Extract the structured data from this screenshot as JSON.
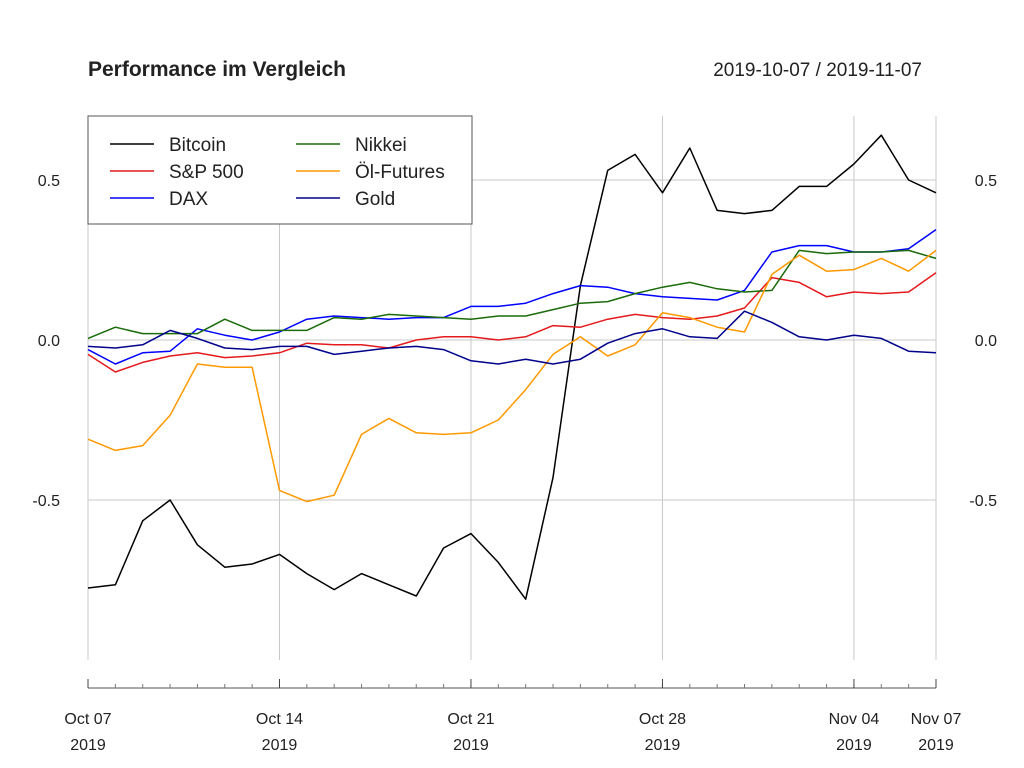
{
  "chart_data": {
    "type": "line",
    "title": "Performance im Vergleich",
    "date_range": "2019-10-07 / 2019-11-07",
    "xlabel": "",
    "ylabel": "",
    "ylim": [
      -1.0,
      0.7
    ],
    "y_ticks": [
      0.5,
      0.0,
      -0.5
    ],
    "y_tick_labels": [
      "0.5",
      "0.0",
      "-0.5"
    ],
    "x_range": [
      "2019-10-07",
      "2019-11-07"
    ],
    "x_ticks": [
      {
        "date": "2019-10-07",
        "line1": "Oct 07",
        "line2": "2019"
      },
      {
        "date": "2019-10-14",
        "line1": "Oct 14",
        "line2": "2019"
      },
      {
        "date": "2019-10-21",
        "line1": "Oct 21",
        "line2": "2019"
      },
      {
        "date": "2019-10-28",
        "line1": "Oct 28",
        "line2": "2019"
      },
      {
        "date": "2019-11-04",
        "line1": "Nov 04",
        "line2": "2019"
      },
      {
        "date": "2019-11-07",
        "line1": "Nov 07",
        "line2": "2019"
      }
    ],
    "grid": true,
    "legend_position": "top-left",
    "x": [
      "2019-10-07",
      "2019-10-08",
      "2019-10-09",
      "2019-10-10",
      "2019-10-11",
      "2019-10-12",
      "2019-10-13",
      "2019-10-14",
      "2019-10-15",
      "2019-10-16",
      "2019-10-17",
      "2019-10-18",
      "2019-10-19",
      "2019-10-20",
      "2019-10-21",
      "2019-10-22",
      "2019-10-23",
      "2019-10-24",
      "2019-10-25",
      "2019-10-26",
      "2019-10-27",
      "2019-10-28",
      "2019-10-29",
      "2019-10-30",
      "2019-10-31",
      "2019-11-01",
      "2019-11-02",
      "2019-11-03",
      "2019-11-04",
      "2019-11-05",
      "2019-11-06",
      "2019-11-07"
    ],
    "series": [
      {
        "name": "Bitcoin",
        "color": "#000000",
        "values": [
          -0.775,
          -0.765,
          -0.565,
          -0.5,
          -0.64,
          -0.71,
          -0.7,
          -0.67,
          -0.73,
          -0.78,
          -0.73,
          -0.765,
          -0.8,
          -0.65,
          -0.605,
          -0.695,
          -0.81,
          -0.43,
          0.17,
          0.53,
          0.58,
          0.46,
          0.6,
          0.405,
          0.395,
          0.405,
          0.48,
          0.48,
          0.55,
          0.64,
          0.5,
          0.46
        ]
      },
      {
        "name": "S&P 500",
        "color": "#e41a1c",
        "values": [
          -0.045,
          -0.1,
          -0.07,
          -0.05,
          -0.04,
          -0.055,
          -0.05,
          -0.04,
          -0.01,
          -0.015,
          -0.015,
          -0.025,
          0.0,
          0.01,
          0.01,
          0.0,
          0.01,
          0.045,
          0.04,
          0.065,
          0.08,
          0.07,
          0.065,
          0.075,
          0.1,
          0.195,
          0.18,
          0.135,
          0.15,
          0.145,
          0.15,
          0.21
        ]
      },
      {
        "name": "DAX",
        "color": "#0000ff",
        "values": [
          -0.03,
          -0.075,
          -0.04,
          -0.035,
          0.035,
          0.015,
          0.0,
          0.025,
          0.065,
          0.075,
          0.07,
          0.065,
          0.07,
          0.07,
          0.105,
          0.105,
          0.115,
          0.145,
          0.17,
          0.165,
          0.145,
          0.135,
          0.13,
          0.125,
          0.155,
          0.275,
          0.295,
          0.295,
          0.275,
          0.275,
          0.285,
          0.345
        ]
      },
      {
        "name": "Nikkei",
        "color": "#1a6b0a",
        "values": [
          0.005,
          0.04,
          0.02,
          0.02,
          0.02,
          0.065,
          0.03,
          0.03,
          0.03,
          0.07,
          0.065,
          0.08,
          0.075,
          0.07,
          0.065,
          0.075,
          0.075,
          0.095,
          0.115,
          0.12,
          0.145,
          0.165,
          0.18,
          0.16,
          0.15,
          0.155,
          0.28,
          0.27,
          0.275,
          0.275,
          0.28,
          0.255
        ]
      },
      {
        "name": "Öl-Futures",
        "color": "#ff9900",
        "values": [
          -0.31,
          -0.345,
          -0.33,
          -0.235,
          -0.075,
          -0.085,
          -0.085,
          -0.47,
          -0.505,
          -0.485,
          -0.295,
          -0.245,
          -0.29,
          -0.295,
          -0.29,
          -0.25,
          -0.155,
          -0.045,
          0.01,
          -0.05,
          -0.015,
          0.085,
          0.07,
          0.04,
          0.025,
          0.205,
          0.265,
          0.215,
          0.22,
          0.255,
          0.215,
          0.28
        ]
      },
      {
        "name": "Gold",
        "color": "#00008b",
        "values": [
          -0.02,
          -0.025,
          -0.015,
          0.03,
          0.005,
          -0.025,
          -0.03,
          -0.02,
          -0.02,
          -0.045,
          -0.035,
          -0.025,
          -0.02,
          -0.03,
          -0.065,
          -0.075,
          -0.06,
          -0.075,
          -0.06,
          -0.01,
          0.02,
          0.035,
          0.01,
          0.005,
          0.09,
          0.055,
          0.01,
          0.0,
          0.015,
          0.005,
          -0.035,
          -0.04
        ]
      }
    ]
  }
}
